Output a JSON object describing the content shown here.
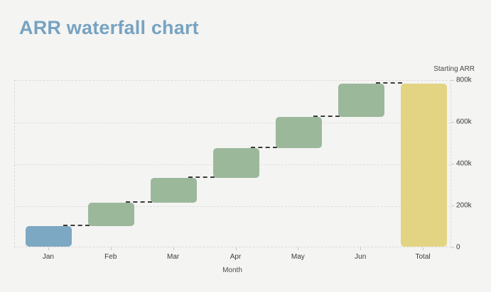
{
  "header": {
    "title": "ARR waterfall chart"
  },
  "chart_data": {
    "type": "bar",
    "subtype": "waterfall",
    "title": "ARR waterfall chart",
    "xlabel": "Month",
    "ylabel": "Starting ARR",
    "ylim": [
      0,
      800000
    ],
    "grid": true,
    "legend": false,
    "categories": [
      "Jan",
      "Feb",
      "Mar",
      "Apr",
      "May",
      "Jun",
      "Total"
    ],
    "bars": [
      {
        "label": "Jan",
        "from": 0,
        "to": 100000,
        "delta": 100000,
        "role": "start",
        "color_key": "start"
      },
      {
        "label": "Feb",
        "from": 100000,
        "to": 210000,
        "delta": 110000,
        "role": "increase",
        "color_key": "increase"
      },
      {
        "label": "Mar",
        "from": 210000,
        "to": 330000,
        "delta": 120000,
        "role": "increase",
        "color_key": "increase"
      },
      {
        "label": "Apr",
        "from": 330000,
        "to": 470000,
        "delta": 140000,
        "role": "increase",
        "color_key": "increase"
      },
      {
        "label": "May",
        "from": 470000,
        "to": 620000,
        "delta": 150000,
        "role": "increase",
        "color_key": "increase"
      },
      {
        "label": "Jun",
        "from": 620000,
        "to": 780000,
        "delta": 160000,
        "role": "increase",
        "color_key": "increase"
      },
      {
        "label": "Total",
        "from": 0,
        "to": 780000,
        "delta": 780000,
        "role": "total",
        "color_key": "total"
      }
    ],
    "connector_levels": [
      100000,
      210000,
      330000,
      470000,
      620000,
      780000
    ],
    "yticks": [
      {
        "value": 0,
        "label": "0"
      },
      {
        "value": 200000,
        "label": "200k"
      },
      {
        "value": 400000,
        "label": "400k"
      },
      {
        "value": 600000,
        "label": "600k"
      },
      {
        "value": 800000,
        "label": "800k"
      }
    ],
    "colors": {
      "start": "#7da8c3",
      "increase": "#9cb89b",
      "total": "#e3d484",
      "title": "#77a3c1",
      "grid": "#e3dfde",
      "connector": "#3a3a3a",
      "axis_text": "#3b3b3b",
      "background": "#f4f4f3"
    }
  }
}
